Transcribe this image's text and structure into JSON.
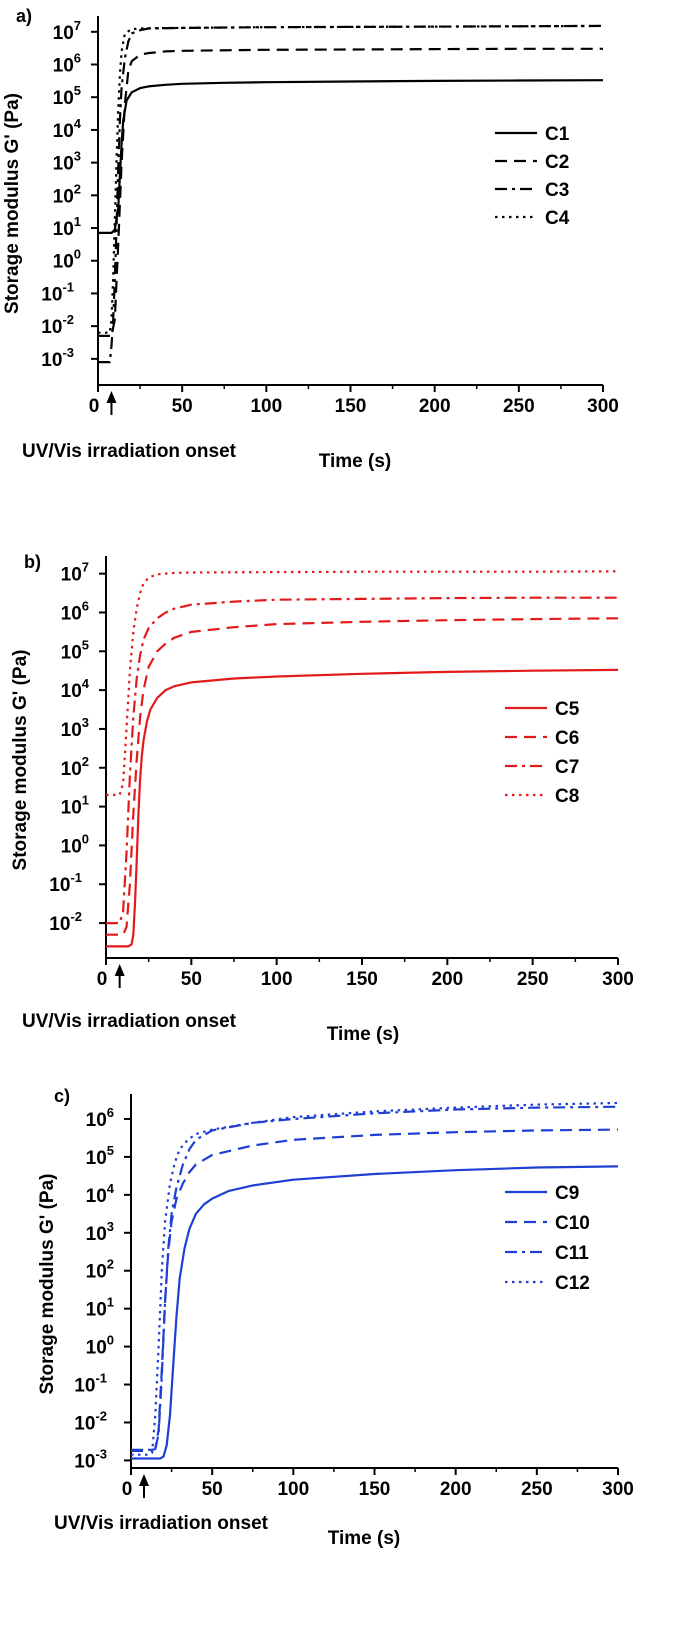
{
  "charts": [
    {
      "panel_label": "a)",
      "color": "#000000",
      "onset_label": "UV/Vis irradiation onset",
      "chart_data": {
        "type": "line",
        "title": "",
        "xlabel": "Time (s)",
        "ylabel": "Storage modulus G' (Pa)",
        "y_scale": "log",
        "xlim": [
          0,
          300
        ],
        "ylim_exp": [
          -3.8,
          7.3
        ],
        "x_ticks": [
          "0",
          "50",
          "100",
          "150",
          "200",
          "250",
          "300"
        ],
        "x_tick_values": [
          0,
          50,
          100,
          150,
          200,
          250,
          300
        ],
        "y_tick_exponents": [
          -3,
          -2,
          -1,
          0,
          1,
          2,
          3,
          4,
          5,
          6,
          7
        ],
        "legend_position": "right",
        "onset_time": 8,
        "series": [
          {
            "name": "C1",
            "dash": "solid",
            "x": [
              0,
              8,
              10,
              12,
              13,
              14,
              15,
              17,
              20,
              25,
              30,
              40,
              50,
              75,
              100,
              150,
              200,
              250,
              300
            ],
            "y_log10": [
              0.85,
              0.85,
              0.95,
              1.6,
              2.6,
              3.6,
              4.3,
              4.9,
              5.15,
              5.28,
              5.33,
              5.38,
              5.41,
              5.44,
              5.46,
              5.48,
              5.5,
              5.51,
              5.52
            ]
          },
          {
            "name": "C2",
            "dash": "dash",
            "x": [
              0,
              4,
              6,
              8,
              10,
              12,
              14,
              16,
              18,
              20,
              25,
              30,
              40,
              50,
              100,
              150,
              200,
              250,
              300
            ],
            "y_log10": [
              -2.3,
              -2.3,
              -2.3,
              -2.3,
              -1.8,
              0.5,
              3.0,
              4.8,
              5.8,
              6.1,
              6.3,
              6.35,
              6.4,
              6.42,
              6.45,
              6.46,
              6.47,
              6.48,
              6.48
            ]
          },
          {
            "name": "C3",
            "dash": "dashdot",
            "x": [
              0,
              5,
              7,
              8,
              9,
              10,
              11,
              12,
              13,
              14,
              16,
              18,
              20,
              25,
              30,
              50,
              100,
              150,
              200,
              250,
              300
            ],
            "y_log10": [
              -3.1,
              -3.1,
              -3.1,
              -2.6,
              -1.8,
              -0.6,
              1.0,
              2.8,
              4.3,
              5.3,
              6.2,
              6.7,
              6.95,
              7.05,
              7.1,
              7.12,
              7.14,
              7.15,
              7.16,
              7.17,
              7.18
            ]
          },
          {
            "name": "C4",
            "dash": "dot",
            "x": [
              0,
              5,
              7,
              8,
              9,
              10,
              11,
              12,
              13,
              14,
              16,
              20,
              25,
              30,
              50,
              100,
              150,
              200,
              250,
              300
            ],
            "y_log10": [
              -2.2,
              -2.2,
              -2.2,
              -1.8,
              -0.5,
              1.2,
              3.0,
              4.6,
              5.7,
              6.4,
              6.95,
              7.08,
              7.1,
              7.11,
              7.12,
              7.14,
              7.15,
              7.16,
              7.17,
              7.18
            ]
          }
        ]
      }
    },
    {
      "panel_label": "b)",
      "color": "#e31a1c",
      "onset_label": "UV/Vis irradiation onset",
      "chart_data": {
        "type": "line",
        "title": "",
        "xlabel": "Time (s)",
        "ylabel": "Storage modulus G' (Pa)",
        "y_scale": "log",
        "xlim": [
          0,
          300
        ],
        "ylim_exp": [
          -2.9,
          7.3
        ],
        "x_ticks": [
          "0",
          "50",
          "100",
          "150",
          "200",
          "250",
          "300"
        ],
        "x_tick_values": [
          0,
          50,
          100,
          150,
          200,
          250,
          300
        ],
        "y_tick_exponents": [
          -2,
          -1,
          0,
          1,
          2,
          3,
          4,
          5,
          6,
          7
        ],
        "legend_position": "right",
        "onset_time": 8,
        "series": [
          {
            "name": "C5",
            "dash": "solid",
            "x": [
              0,
              10,
              13,
              15,
              16,
              17,
              18,
              19,
              20,
              21,
              22,
              24,
              26,
              30,
              35,
              40,
              50,
              75,
              100,
              150,
              200,
              250,
              300
            ],
            "y_log10": [
              -2.6,
              -2.6,
              -2.6,
              -2.55,
              -2.3,
              -1.5,
              -0.4,
              0.8,
              1.7,
              2.3,
              2.7,
              3.2,
              3.5,
              3.8,
              4.0,
              4.1,
              4.2,
              4.3,
              4.35,
              4.42,
              4.47,
              4.5,
              4.52
            ]
          },
          {
            "name": "C6",
            "dash": "dash",
            "x": [
              0,
              10,
              12,
              14,
              16,
              18,
              20,
              22,
              25,
              30,
              35,
              40,
              50,
              75,
              100,
              150,
              200,
              250,
              300
            ],
            "y_log10": [
              -2.3,
              -2.3,
              -2.1,
              -1.0,
              0.8,
              2.2,
              3.3,
              4.0,
              4.6,
              5.0,
              5.2,
              5.35,
              5.5,
              5.62,
              5.7,
              5.76,
              5.8,
              5.83,
              5.85
            ]
          },
          {
            "name": "C7",
            "dash": "dashdot",
            "x": [
              0,
              8,
              10,
              12,
              14,
              16,
              18,
              20,
              22,
              25,
              30,
              35,
              40,
              50,
              75,
              100,
              150,
              200,
              250,
              300
            ],
            "y_log10": [
              -2.0,
              -2.0,
              -1.7,
              -0.2,
              1.8,
              3.3,
              4.3,
              4.9,
              5.3,
              5.6,
              5.85,
              6.0,
              6.1,
              6.2,
              6.28,
              6.33,
              6.35,
              6.37,
              6.38,
              6.38
            ]
          },
          {
            "name": "C8",
            "dash": "dot",
            "x": [
              0,
              6,
              8,
              10,
              12,
              14,
              16,
              18,
              20,
              22,
              25,
              30,
              35,
              40,
              50,
              100,
              150,
              200,
              250,
              300
            ],
            "y_log10": [
              1.3,
              1.3,
              1.3,
              1.6,
              3.0,
              4.5,
              5.5,
              6.1,
              6.5,
              6.75,
              6.9,
              6.98,
              7.0,
              7.02,
              7.03,
              7.04,
              7.05,
              7.05,
              7.05,
              7.06
            ]
          }
        ]
      }
    },
    {
      "panel_label": "c)",
      "color": "#1f3fd4",
      "onset_label": "UV/Vis irradiation onset",
      "chart_data": {
        "type": "line",
        "title": "",
        "xlabel": "Time (s)",
        "ylabel": "Storage modulus G' (Pa)",
        "y_scale": "log",
        "xlim": [
          0,
          300
        ],
        "ylim_exp": [
          -3.2,
          6.5
        ],
        "x_ticks": [
          "0",
          "50",
          "100",
          "150",
          "200",
          "250",
          "300"
        ],
        "x_tick_values": [
          0,
          50,
          100,
          150,
          200,
          250,
          300
        ],
        "y_tick_exponents": [
          -3,
          -2,
          -1,
          0,
          1,
          2,
          3,
          4,
          5,
          6
        ],
        "legend_position": "right",
        "onset_time": 8,
        "series": [
          {
            "name": "C9",
            "dash": "solid",
            "x": [
              0,
              14,
              18,
              20,
              22,
              24,
              26,
              28,
              30,
              33,
              36,
              40,
              45,
              50,
              60,
              75,
              100,
              150,
              200,
              250,
              300
            ],
            "y_log10": [
              -2.95,
              -2.95,
              -2.95,
              -2.9,
              -2.6,
              -1.8,
              -0.5,
              0.8,
              1.8,
              2.6,
              3.1,
              3.5,
              3.75,
              3.9,
              4.1,
              4.25,
              4.4,
              4.55,
              4.65,
              4.72,
              4.75
            ]
          },
          {
            "name": "C10",
            "dash": "dash",
            "x": [
              0,
              10,
              15,
              17,
              19,
              21,
              23,
              25,
              28,
              32,
              36,
              40,
              50,
              75,
              100,
              150,
              200,
              250,
              300
            ],
            "y_log10": [
              -2.75,
              -2.75,
              -2.7,
              -2.2,
              -0.6,
              1.2,
              2.5,
              3.3,
              3.9,
              4.3,
              4.6,
              4.8,
              5.05,
              5.3,
              5.45,
              5.58,
              5.65,
              5.7,
              5.72
            ]
          },
          {
            "name": "C11",
            "dash": "dashdot",
            "x": [
              0,
              12,
              15,
              17,
              19,
              21,
              23,
              25,
              28,
              32,
              36,
              40,
              50,
              75,
              100,
              150,
              200,
              250,
              300
            ],
            "y_log10": [
              -2.72,
              -2.72,
              -2.7,
              -2.3,
              -0.8,
              1.2,
              2.6,
              3.5,
              4.2,
              4.8,
              5.2,
              5.45,
              5.7,
              5.9,
              6.0,
              6.15,
              6.25,
              6.3,
              6.32
            ]
          },
          {
            "name": "C12",
            "dash": "dot",
            "x": [
              0,
              10,
              13,
              15,
              17,
              19,
              21,
              24,
              27,
              30,
              35,
              40,
              50,
              75,
              100,
              150,
              200,
              250,
              300
            ],
            "y_log10": [
              -2.85,
              -2.85,
              -2.8,
              -1.8,
              0.0,
              2.0,
              3.3,
              4.3,
              4.85,
              5.2,
              5.45,
              5.6,
              5.72,
              5.9,
              6.05,
              6.2,
              6.3,
              6.38,
              6.42
            ]
          }
        ]
      }
    }
  ]
}
